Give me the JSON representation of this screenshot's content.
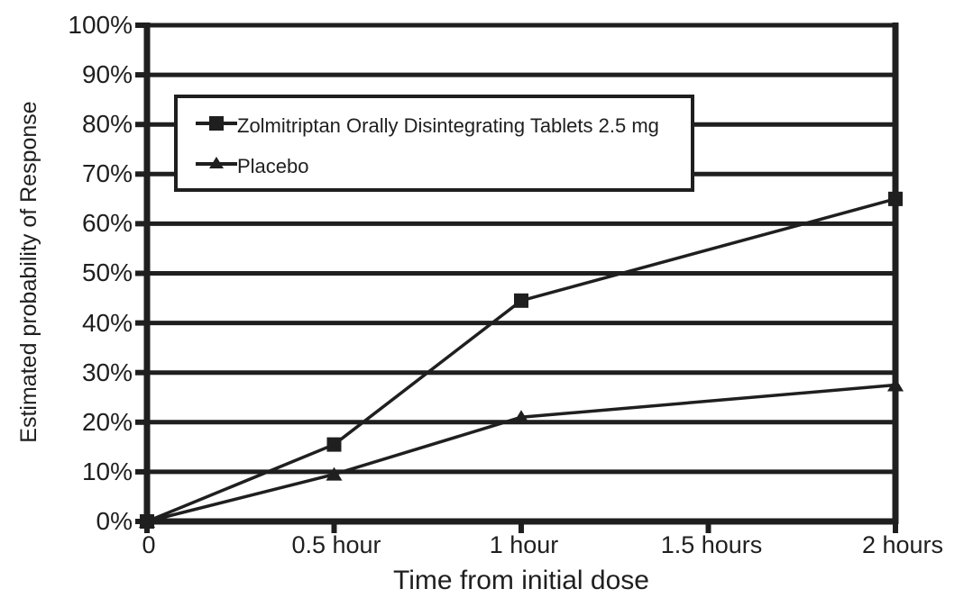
{
  "chart_data": {
    "type": "line",
    "title": "",
    "xlabel": "Time from initial dose",
    "ylabel": "Estimated probability of Response",
    "x_hours": [
      0,
      0.5,
      1,
      2
    ],
    "x_ticks_hours": [
      0,
      0.5,
      1,
      1.5,
      2
    ],
    "x_tick_labels": [
      "0",
      "0.5 hour",
      "1 hour",
      "1.5 hours",
      "2 hours"
    ],
    "y_tick_labels": [
      "0%",
      "10%",
      "20%",
      "30%",
      "40%",
      "50%",
      "60%",
      "70%",
      "80%",
      "90%",
      "100%"
    ],
    "ylim": [
      0,
      100
    ],
    "y_step": 10,
    "xlim_hours": [
      0,
      2
    ],
    "grid": "horizontal",
    "legend_position": "upper-left-inside",
    "line_color": "#1f1f1f",
    "background_color": "#ffffff",
    "series": [
      {
        "name": "Placebo",
        "marker": "triangle",
        "values_percent": [
          0,
          9.5,
          21,
          27.5
        ]
      },
      {
        "name": "Zolmitriptan Orally Disintegrating Tablets 2.5 mg",
        "marker": "square",
        "values_percent": [
          0,
          15.5,
          44.5,
          65
        ]
      }
    ]
  }
}
